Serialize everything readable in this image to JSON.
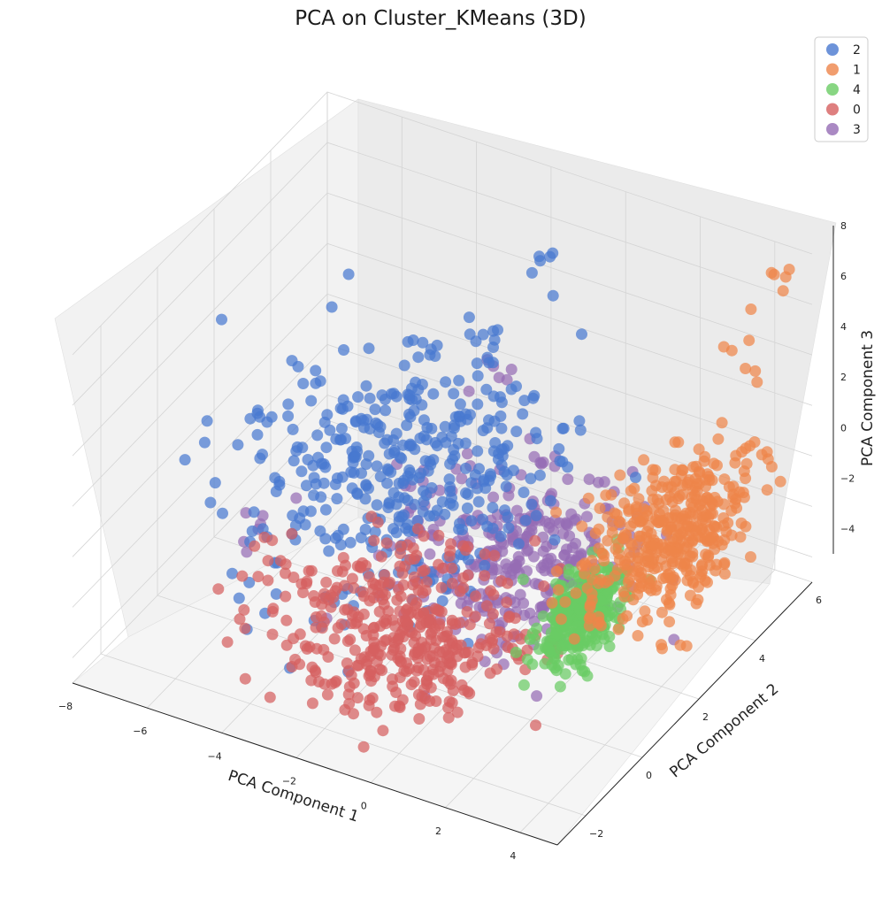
{
  "chart_data": {
    "type": "scatter",
    "projection": "3d",
    "title": "PCA on Cluster_KMeans (3D)",
    "xlabel": "PCA Component 1",
    "ylabel": "PCA Component 2",
    "zlabel": "PCA Component 3",
    "xlim": [
      -8,
      5
    ],
    "ylim": [
      -3,
      6
    ],
    "zlim": [
      -5,
      8
    ],
    "x_ticks": [
      "−8",
      "−6",
      "−4",
      "−2",
      "0",
      "2",
      "4"
    ],
    "y_ticks": [
      "−2",
      "0",
      "2",
      "4",
      "6"
    ],
    "z_ticks": [
      "−4",
      "−2",
      "0",
      "2",
      "4",
      "6",
      "8"
    ],
    "grid": true,
    "legend_position": "top-right",
    "series": [
      {
        "name": "2",
        "color": "#4878d0",
        "marker_count": 1200,
        "centroid": [
          -2.5,
          1.5,
          0.8
        ],
        "spread": [
          1.8,
          1.6,
          1.8
        ],
        "sample_points": [
          [
            -4.8,
            2.2,
            1.5
          ],
          [
            -3.5,
            3.0,
            2.8
          ],
          [
            -2.0,
            3.5,
            4.5
          ],
          [
            -1.0,
            4.0,
            6.8
          ],
          [
            -5.0,
            0.5,
            -1.0
          ],
          [
            -1.0,
            0.0,
            -0.5
          ]
        ]
      },
      {
        "name": "1",
        "color": "#ee854a",
        "marker_count": 520,
        "centroid": [
          3.5,
          3.0,
          -0.5
        ],
        "spread": [
          0.8,
          1.2,
          0.8
        ],
        "sample_points": [
          [
            4.0,
            3.5,
            0.2
          ],
          [
            2.5,
            2.0,
            0.6
          ],
          [
            4.5,
            5.5,
            7.0
          ],
          [
            4.2,
            4.5,
            5.0
          ],
          [
            3.8,
            3.0,
            2.2
          ]
        ]
      },
      {
        "name": "4",
        "color": "#6acc64",
        "marker_count": 300,
        "centroid": [
          2.2,
          1.5,
          -2.5
        ],
        "spread": [
          0.3,
          0.6,
          0.7
        ],
        "sample_points": [
          [
            2.4,
            2.0,
            -1.5
          ],
          [
            2.0,
            1.0,
            -3.5
          ],
          [
            2.6,
            1.8,
            -2.0
          ]
        ]
      },
      {
        "name": "0",
        "color": "#d65f5f",
        "marker_count": 950,
        "centroid": [
          -1.0,
          -0.5,
          -2.5
        ],
        "spread": [
          1.5,
          1.0,
          1.0
        ],
        "sample_points": [
          [
            -3.0,
            0.0,
            -2.0
          ],
          [
            0.0,
            -1.0,
            -3.0
          ],
          [
            -1.5,
            -1.5,
            -4.0
          ],
          [
            -5.5,
            0.5,
            -2.5
          ]
        ]
      },
      {
        "name": "3",
        "color": "#956cb4",
        "marker_count": 330,
        "centroid": [
          0.5,
          1.5,
          -1.0
        ],
        "spread": [
          1.4,
          1.0,
          1.2
        ],
        "sample_points": [
          [
            1.0,
            2.0,
            0.5
          ],
          [
            0.5,
            1.0,
            -2.5
          ],
          [
            -1.0,
            2.5,
            4.5
          ],
          [
            -6.0,
            1.0,
            -2.5
          ]
        ]
      }
    ]
  }
}
